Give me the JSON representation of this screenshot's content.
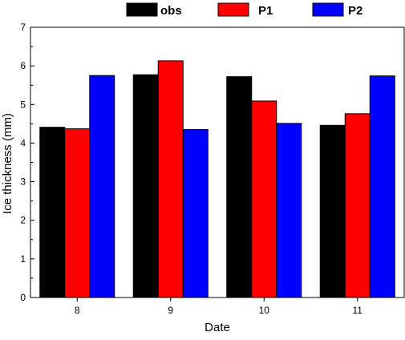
{
  "chart_data": {
    "type": "bar",
    "title": "",
    "xlabel": "Date",
    "ylabel": "Ice thickness (mm)",
    "categories": [
      "8",
      "9",
      "10",
      "11"
    ],
    "ylim": [
      0,
      7
    ],
    "yticks": [
      "0",
      "1",
      "2",
      "3",
      "4",
      "5",
      "6",
      "7"
    ],
    "grid": false,
    "legend_position": "top",
    "series": [
      {
        "name": "obs",
        "color": "#000000",
        "values": [
          4.41,
          5.77,
          5.72,
          4.46
        ]
      },
      {
        "name": "P1",
        "color": "#ff0000",
        "values": [
          4.37,
          6.13,
          5.09,
          4.76
        ]
      },
      {
        "name": "P2",
        "color": "#0000ff",
        "values": [
          5.75,
          4.35,
          4.51,
          5.74
        ]
      }
    ]
  }
}
